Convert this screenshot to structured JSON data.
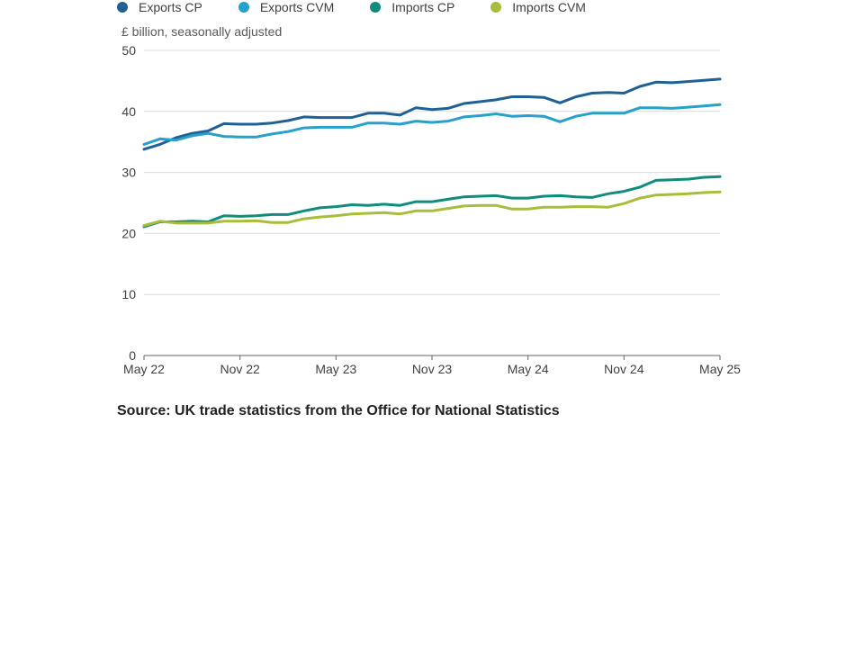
{
  "chart_data": {
    "type": "line",
    "ylabel": "£ billion, seasonally adjusted",
    "ylim": [
      0,
      50
    ],
    "yticks": [
      "0",
      "10",
      "20",
      "30",
      "40",
      "50"
    ],
    "x_tick_labels": [
      "May 22",
      "Nov 22",
      "May 23",
      "Nov 23",
      "May 24",
      "Nov 24",
      "May 25"
    ],
    "legend_position": "top",
    "grid": true,
    "series": [
      {
        "name": "Exports CP",
        "color": "#206095",
        "values": [
          33.8,
          34.6,
          35.7,
          36.4,
          36.8,
          38.0,
          37.9,
          37.9,
          38.1,
          38.5,
          39.1,
          39.0,
          39.0,
          39.0,
          39.7,
          39.7,
          39.4,
          40.6,
          40.3,
          40.5,
          41.3,
          41.6,
          41.9,
          42.4,
          42.4,
          42.3,
          41.4,
          42.4,
          43.0,
          43.1,
          43.0,
          44.1,
          44.8,
          44.7,
          44.9,
          45.1,
          45.3
        ]
      },
      {
        "name": "Exports CVM",
        "color": "#27a0cc",
        "values": [
          34.6,
          35.5,
          35.3,
          36.0,
          36.4,
          35.9,
          35.8,
          35.8,
          36.3,
          36.7,
          37.3,
          37.4,
          37.4,
          37.4,
          38.1,
          38.1,
          37.9,
          38.4,
          38.2,
          38.4,
          39.1,
          39.3,
          39.6,
          39.2,
          39.3,
          39.2,
          38.3,
          39.2,
          39.7,
          39.7,
          39.7,
          40.6,
          40.6,
          40.5,
          40.7,
          40.9,
          41.1
        ]
      },
      {
        "name": "Imports CP",
        "color": "#118c7b",
        "values": [
          21.1,
          21.9,
          21.9,
          22.0,
          21.9,
          22.9,
          22.8,
          22.9,
          23.1,
          23.1,
          23.7,
          24.2,
          24.4,
          24.7,
          24.6,
          24.8,
          24.6,
          25.2,
          25.2,
          25.6,
          26.0,
          26.1,
          26.2,
          25.8,
          25.8,
          26.1,
          26.2,
          26.0,
          25.9,
          26.5,
          26.9,
          27.6,
          28.7,
          28.8,
          28.9,
          29.2,
          29.3
        ]
      },
      {
        "name": "Imports CVM",
        "color": "#a8bd3a",
        "values": [
          21.3,
          22.0,
          21.7,
          21.7,
          21.7,
          22.0,
          22.0,
          22.1,
          21.8,
          21.8,
          22.4,
          22.7,
          22.9,
          23.2,
          23.3,
          23.4,
          23.2,
          23.7,
          23.7,
          24.1,
          24.5,
          24.6,
          24.6,
          24.0,
          24.0,
          24.3,
          24.3,
          24.4,
          24.4,
          24.3,
          24.9,
          25.8,
          26.3,
          26.4,
          26.5,
          26.7,
          26.8
        ]
      }
    ]
  },
  "source_text": "Source: UK trade statistics from the Office for National Statistics"
}
